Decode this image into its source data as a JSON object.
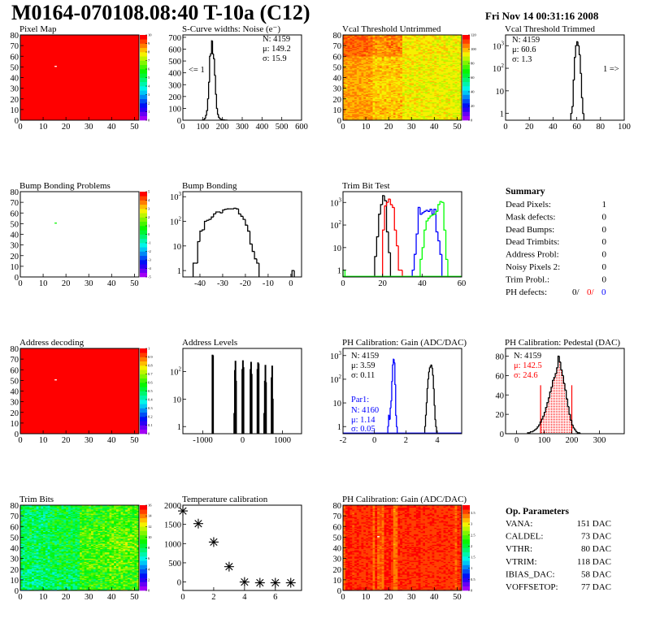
{
  "header": {
    "title": "M0164-070108.08:40 T-10a (C12)",
    "date": "Fri Nov 14 00:31:16 2008"
  },
  "summary": {
    "title": "Summary",
    "rows": [
      {
        "label": "Dead Pixels:",
        "value": "1"
      },
      {
        "label": "Mask defects:",
        "value": "0"
      },
      {
        "label": "Dead Bumps:",
        "value": "0"
      },
      {
        "label": "Dead Trimbits:",
        "value": "0"
      },
      {
        "label": "Address Probl:",
        "value": "0"
      },
      {
        "label": "Noisy Pixels 2:",
        "value": "0"
      },
      {
        "label": "Trim Probl.:",
        "value": "0"
      }
    ],
    "ph_defects": {
      "label": "PH defects:",
      "values": [
        {
          "text": "0/",
          "color": "#000000"
        },
        {
          "text": "0/",
          "color": "#ff0000"
        },
        {
          "text": "0",
          "color": "#0000ff"
        }
      ]
    }
  },
  "op_parameters": {
    "title": "Op. Parameters",
    "rows": [
      {
        "label": "VANA:",
        "value": "151 DAC"
      },
      {
        "label": "CALDEL:",
        "value": "73 DAC"
      },
      {
        "label": "VTHR:",
        "value": "80 DAC"
      },
      {
        "label": "VTRIM:",
        "value": "118 DAC"
      },
      {
        "label": "IBIAS_DAC:",
        "value": "58 DAC"
      },
      {
        "label": "VOFFSETOP:",
        "value": "77 DAC"
      }
    ]
  },
  "chart_data": [
    {
      "type": "heatmap",
      "title": "Pixel Map",
      "xlim": [
        0,
        52
      ],
      "ylim": [
        0,
        80
      ],
      "zlim": [
        0,
        10
      ],
      "xticks": [
        "0",
        "10",
        "20",
        "30",
        "40",
        "50"
      ],
      "yticks": [
        "0",
        "10",
        "20",
        "30",
        "40",
        "50",
        "60",
        "70",
        "80"
      ],
      "zticks": [
        "0",
        "1",
        "2",
        "3",
        "4",
        "5",
        "6",
        "7",
        "8",
        "9",
        "10"
      ],
      "fill": 10,
      "exceptions": [
        [
          15,
          50,
          0
        ]
      ]
    },
    {
      "type": "bar",
      "title": "S-Curve widths: Noise (e⁻)",
      "xlim": [
        0,
        600
      ],
      "ylim": [
        0,
        720
      ],
      "ylog": false,
      "xticks": [
        "0",
        "100",
        "200",
        "300",
        "400",
        "500",
        "600"
      ],
      "yticks": [
        "0",
        "100",
        "200",
        "300",
        "400",
        "500",
        "600",
        "700"
      ],
      "series": [
        {
          "color": "#000000",
          "start": 100,
          "width": 5,
          "values": [
            2,
            5,
            15,
            40,
            80,
            180,
            320,
            540,
            560,
            670,
            560,
            520,
            380,
            220,
            100,
            50,
            25,
            15,
            10,
            6,
            4,
            3,
            2,
            1,
            1
          ]
        }
      ],
      "annotations": [
        {
          "text": "N: 4159",
          "color": "#000000"
        },
        {
          "text": "μ: 149.2",
          "color": "#000000"
        },
        {
          "text": "σ: 15.9",
          "color": "#000000"
        },
        {
          "text": "<= 1",
          "color": "#000000"
        }
      ]
    },
    {
      "type": "heatmap",
      "title": "Vcal Threshold Untrimmed",
      "xlim": [
        0,
        52
      ],
      "ylim": [
        0,
        80
      ],
      "zlim": [
        0,
        120
      ],
      "xticks": [
        "0",
        "10",
        "20",
        "30",
        "40",
        "50"
      ],
      "yticks": [
        "0",
        "10",
        "20",
        "30",
        "40",
        "50",
        "60",
        "70",
        "80"
      ],
      "zticks": [
        "0",
        "20",
        "40",
        "60",
        "80",
        "100",
        "120"
      ],
      "coarse_means": [
        [
          104,
          100,
          95,
          94
        ],
        [
          103,
          99,
          94,
          93
        ],
        [
          104,
          100,
          95,
          94
        ],
        [
          110,
          106,
          96,
          95
        ]
      ],
      "spread": 6
    },
    {
      "type": "bar",
      "title": "Vcal Threshold Trimmed",
      "xlim": [
        0,
        100
      ],
      "ylim": [
        0.5,
        3000
      ],
      "ylog": true,
      "xticks": [
        "0",
        "20",
        "40",
        "60",
        "80",
        "100"
      ],
      "yticks": [
        "1",
        "10",
        "10^2",
        "10^3"
      ],
      "series": [
        {
          "color": "#000000",
          "start": 55,
          "width": 1,
          "values": [
            1,
            2,
            30,
            300,
            1000,
            1500,
            1000,
            400,
            60,
            5,
            1
          ]
        }
      ],
      "annotations": [
        {
          "text": "N: 4159",
          "color": "#000000"
        },
        {
          "text": "μ: 60.6",
          "color": "#000000"
        },
        {
          "text": "σ:  1.3",
          "color": "#000000"
        },
        {
          "text": "1 =>",
          "color": "#000000"
        }
      ]
    },
    {
      "type": "heatmap",
      "title": "Bump Bonding Problems",
      "xlim": [
        0,
        52
      ],
      "ylim": [
        0,
        80
      ],
      "zlim": [
        -5,
        5
      ],
      "xticks": [
        "0",
        "10",
        "20",
        "30",
        "40",
        "50"
      ],
      "yticks": [
        "0",
        "10",
        "20",
        "30",
        "40",
        "50",
        "60",
        "70",
        "80"
      ],
      "zticks": [
        "-5",
        "-4",
        "-3",
        "-2",
        "-1",
        "0",
        "1",
        "2",
        "3",
        "4",
        "5"
      ],
      "fill": null,
      "exceptions": [
        [
          15,
          50,
          1
        ]
      ]
    },
    {
      "type": "bar",
      "title": "Bump Bonding",
      "xlim": [
        -47.5,
        4.7
      ],
      "ylim": [
        0.55,
        1600
      ],
      "ylog": true,
      "xticks": [
        "-40",
        "-30",
        "-20",
        "-10",
        "0"
      ],
      "yticks": [
        "1",
        "10",
        "10^2",
        "10^3"
      ],
      "series": [
        {
          "color": "#000000",
          "start": -43,
          "width": 1,
          "values": [
            2,
            2,
            15,
            40,
            45,
            100,
            110,
            120,
            150,
            200,
            240,
            240,
            220,
            290,
            310,
            320,
            320,
            320,
            340,
            320,
            200,
            160,
            120,
            70,
            40,
            12,
            6,
            3,
            2
          ]
        },
        {
          "color": "#000000",
          "start": 0.5,
          "width": 1,
          "values": [
            1
          ]
        }
      ]
    },
    {
      "type": "bar",
      "title": "Trim Bit Test",
      "xlim": [
        0,
        60
      ],
      "ylim": [
        0.5,
        3000
      ],
      "ylog": true,
      "xticks": [
        "0",
        "20",
        "40",
        "60"
      ],
      "yticks": [
        "1",
        "10",
        "10^2",
        "10^3"
      ],
      "series": [
        {
          "color": "#000000",
          "start": 16,
          "width": 1,
          "values": [
            4,
            30,
            300,
            800,
            2000,
            1200,
            50,
            6
          ]
        },
        {
          "color": "#ff0000",
          "start": 20,
          "width": 1,
          "values": [
            60,
            700,
            1000,
            1400,
            800,
            600,
            60,
            12,
            1,
            1
          ]
        },
        {
          "color": "#0000ff",
          "start": 35,
          "width": 1,
          "values": [
            1,
            5,
            40,
            600,
            300,
            350,
            400,
            450,
            400,
            500,
            300,
            500,
            50,
            20,
            5
          ]
        },
        {
          "color": "#00ff00",
          "start": 39,
          "width": 1,
          "values": [
            3,
            10,
            60,
            150,
            200,
            250,
            280,
            300,
            400,
            800,
            1100,
            1000,
            60,
            3
          ]
        },
        {
          "color": "#00ff00",
          "start": 0,
          "width": 1,
          "values": [
            1
          ]
        }
      ]
    },
    {
      "type": "heatmap",
      "title": "Address decoding",
      "xlim": [
        0,
        52
      ],
      "ylim": [
        0,
        80
      ],
      "zlim": [
        0,
        1
      ],
      "xticks": [
        "0",
        "10",
        "20",
        "30",
        "40",
        "50"
      ],
      "yticks": [
        "0",
        "10",
        "20",
        "30",
        "40",
        "50",
        "60",
        "70",
        "80"
      ],
      "zticks": [
        "0",
        "0.1",
        "0.2",
        "0.3",
        "0.4",
        "0.5",
        "0.6",
        "0.7",
        "0.8",
        "0.9",
        "1"
      ],
      "fill": 1,
      "exceptions": [
        [
          15,
          50,
          0
        ]
      ]
    },
    {
      "type": "bar",
      "title": "Address Levels",
      "xlim": [
        -1500,
        1480
      ],
      "ylim": [
        0.55,
        700
      ],
      "ylog": true,
      "xticks": [
        "-1000",
        "0",
        "1000"
      ],
      "yticks": [
        "1",
        "10",
        "10^2"
      ],
      "sparse": {
        "color": "#000000",
        "width": 15,
        "entries": [
          [
            -760,
            400
          ],
          [
            -745,
            380
          ],
          [
            -212,
            3
          ],
          [
            -197,
            110
          ],
          [
            -182,
            240
          ],
          [
            -167,
            45
          ],
          [
            -10,
            120
          ],
          [
            5,
            250
          ],
          [
            20,
            140
          ],
          [
            195,
            120
          ],
          [
            210,
            220
          ],
          [
            225,
            80
          ],
          [
            370,
            120
          ],
          [
            385,
            210
          ],
          [
            400,
            190
          ],
          [
            540,
            3
          ],
          [
            555,
            45
          ],
          [
            570,
            170
          ],
          [
            585,
            40
          ],
          [
            725,
            60
          ],
          [
            740,
            160
          ],
          [
            755,
            10
          ]
        ]
      }
    },
    {
      "type": "bar",
      "title": "PH Calibration: Gain (ADC/DAC)",
      "xlim": [
        -2,
        5.55
      ],
      "ylim": [
        0.5,
        2000
      ],
      "ylog": true,
      "xticks": [
        "-2",
        "0",
        "2",
        "4"
      ],
      "yticks": [
        "1",
        "10",
        "10^2",
        "10^3"
      ],
      "series": [
        {
          "color": "#0000ff",
          "start": 0.85,
          "width": 0.05,
          "values": [
            1,
            3,
            2,
            6,
            12,
            80,
            400,
            700,
            500,
            60,
            3,
            1
          ]
        },
        {
          "color": "#000000",
          "start": 3.2,
          "width": 0.05,
          "values": [
            1,
            3,
            10,
            40,
            100,
            200,
            300,
            350,
            400,
            300,
            150,
            40,
            8,
            2,
            1
          ]
        }
      ],
      "annotations": [
        {
          "text": "N: 4159",
          "color": "#000000"
        },
        {
          "text": "μ: 3.59",
          "color": "#000000"
        },
        {
          "text": "σ: 0.11",
          "color": "#000000"
        },
        {
          "text": "Par1:",
          "color": "#0000ff"
        },
        {
          "text": "N: 4160",
          "color": "#0000ff"
        },
        {
          "text": "μ: 1.14",
          "color": "#0000ff"
        },
        {
          "text": "σ: 0.05",
          "color": "#0000ff"
        }
      ]
    },
    {
      "type": "bar",
      "title": "PH Calibration: Pedestal (DAC)",
      "xlim": [
        -40,
        390
      ],
      "ylim": [
        0,
        88
      ],
      "ylog": false,
      "xticks": [
        "0",
        "100",
        "200",
        "300"
      ],
      "yticks": [
        "0",
        "20",
        "40",
        "60",
        "80"
      ],
      "series": [
        {
          "color": "#000000",
          "start": 40,
          "width": 5,
          "values": [
            1,
            1,
            2,
            2,
            3,
            4,
            5,
            7,
            9,
            12,
            15,
            18,
            22,
            27,
            32,
            37,
            43,
            48,
            55,
            58,
            62,
            68,
            80,
            74,
            66,
            60,
            52,
            45,
            36,
            28,
            20,
            14,
            9,
            6,
            4,
            2,
            1,
            1
          ]
        }
      ],
      "fit_range": {
        "color": "#ff0000",
        "from": 87,
        "to": 200,
        "marker_height": 50
      },
      "annotations": [
        {
          "text": "N: 4159",
          "color": "#000000"
        },
        {
          "text": "μ: 142.5",
          "color": "#ff0000"
        },
        {
          "text": "σ: 24.6",
          "color": "#ff0000"
        }
      ]
    },
    {
      "type": "heatmap",
      "title": "Trim Bits",
      "xlim": [
        0,
        52
      ],
      "ylim": [
        0,
        80
      ],
      "zlim": [
        0,
        16
      ],
      "xticks": [
        "0",
        "10",
        "20",
        "30",
        "40",
        "50"
      ],
      "yticks": [
        "0",
        "10",
        "20",
        "30",
        "40",
        "50",
        "60",
        "70",
        "80"
      ],
      "zticks": [
        "0",
        "2",
        "4",
        "6",
        "8",
        "10",
        "12",
        "14",
        "16"
      ],
      "coarse_means": [
        [
          7.5,
          8,
          9.5,
          10
        ],
        [
          8,
          8.5,
          10,
          10.5
        ],
        [
          8,
          8.5,
          10,
          10.5
        ],
        [
          8,
          8.5,
          9.5,
          10
        ]
      ],
      "spread": 2
    },
    {
      "type": "scatter",
      "title": "Temperature calibration",
      "xlim": [
        0,
        7.7
      ],
      "ylim": [
        -220,
        2000
      ],
      "xticks": [
        "0",
        "2",
        "4",
        "6"
      ],
      "yticks": [
        "0",
        "500",
        "1000",
        "1500",
        "2000"
      ],
      "points": [
        [
          0,
          1850
        ],
        [
          1,
          1520
        ],
        [
          2,
          1040
        ],
        [
          3,
          400
        ],
        [
          4,
          0
        ],
        [
          5,
          -20
        ],
        [
          6,
          -20
        ],
        [
          7,
          -20
        ]
      ]
    },
    {
      "type": "heatmap",
      "title": "PH Calibration: Gain (ADC/DAC)",
      "xlim": [
        0,
        52
      ],
      "ylim": [
        0,
        80
      ],
      "zlim": [
        0,
        3.85
      ],
      "xticks": [
        "0",
        "10",
        "20",
        "30",
        "40",
        "50"
      ],
      "yticks": [
        "0",
        "10",
        "20",
        "30",
        "40",
        "50",
        "60",
        "70",
        "80"
      ],
      "zticks": [
        "0",
        "0.5",
        "1",
        "1.5",
        "2",
        "2.5",
        "3",
        "3.5"
      ],
      "column_means": [
        3.5,
        3.8,
        3.8,
        3.75,
        3.65,
        3.7,
        3.75,
        3.7,
        3.72,
        3.7,
        3.75,
        3.7,
        3.72,
        3.5,
        3.8,
        3.55,
        3.6,
        3.5,
        3.8,
        3.75,
        3.8,
        3.7,
        3.45,
        3.5,
        3.75,
        3.72,
        3.7,
        3.72,
        3.75,
        3.7,
        3.72,
        3.7,
        3.75,
        3.8,
        3.7,
        3.72,
        3.7,
        3.7,
        3.72,
        3.7,
        3.7,
        3.72,
        3.7,
        3.7,
        3.72,
        3.7,
        3.7,
        3.72,
        3.7,
        3.55,
        3.75,
        3.7
      ],
      "spread": 0.12,
      "exceptions": [
        [
          15,
          50,
          0
        ]
      ]
    }
  ]
}
